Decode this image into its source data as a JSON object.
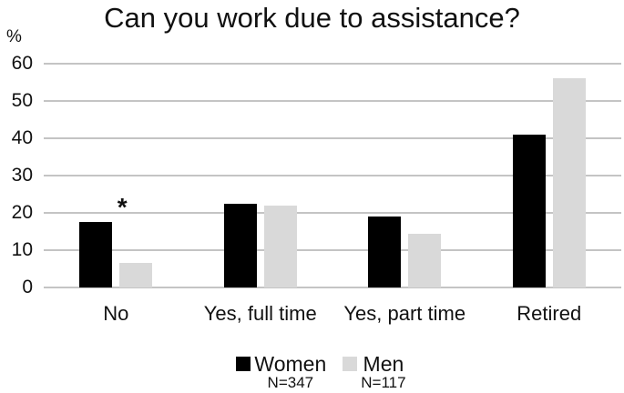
{
  "chart_data": {
    "type": "bar",
    "title": "Can you work due to assistance?",
    "y_axis_label": "%",
    "xlabel": "",
    "ylabel": "%",
    "categories": [
      "No",
      "Yes, full time",
      "Yes, part time",
      "Retired"
    ],
    "series": [
      {
        "name": "Women",
        "n_label": "N=347",
        "color": "#000000",
        "values": [
          17.5,
          22.5,
          19,
          41
        ]
      },
      {
        "name": "Men",
        "n_label": "N=117",
        "color": "#d9d9d9",
        "values": [
          6.5,
          22,
          14.5,
          56
        ]
      }
    ],
    "ylim": [
      0,
      60
    ],
    "ytick_step": 10,
    "grid": true,
    "gridline_color": "#c4c4c4",
    "legend_position": "bottom",
    "annotation": {
      "text": "*",
      "category": "No"
    }
  }
}
